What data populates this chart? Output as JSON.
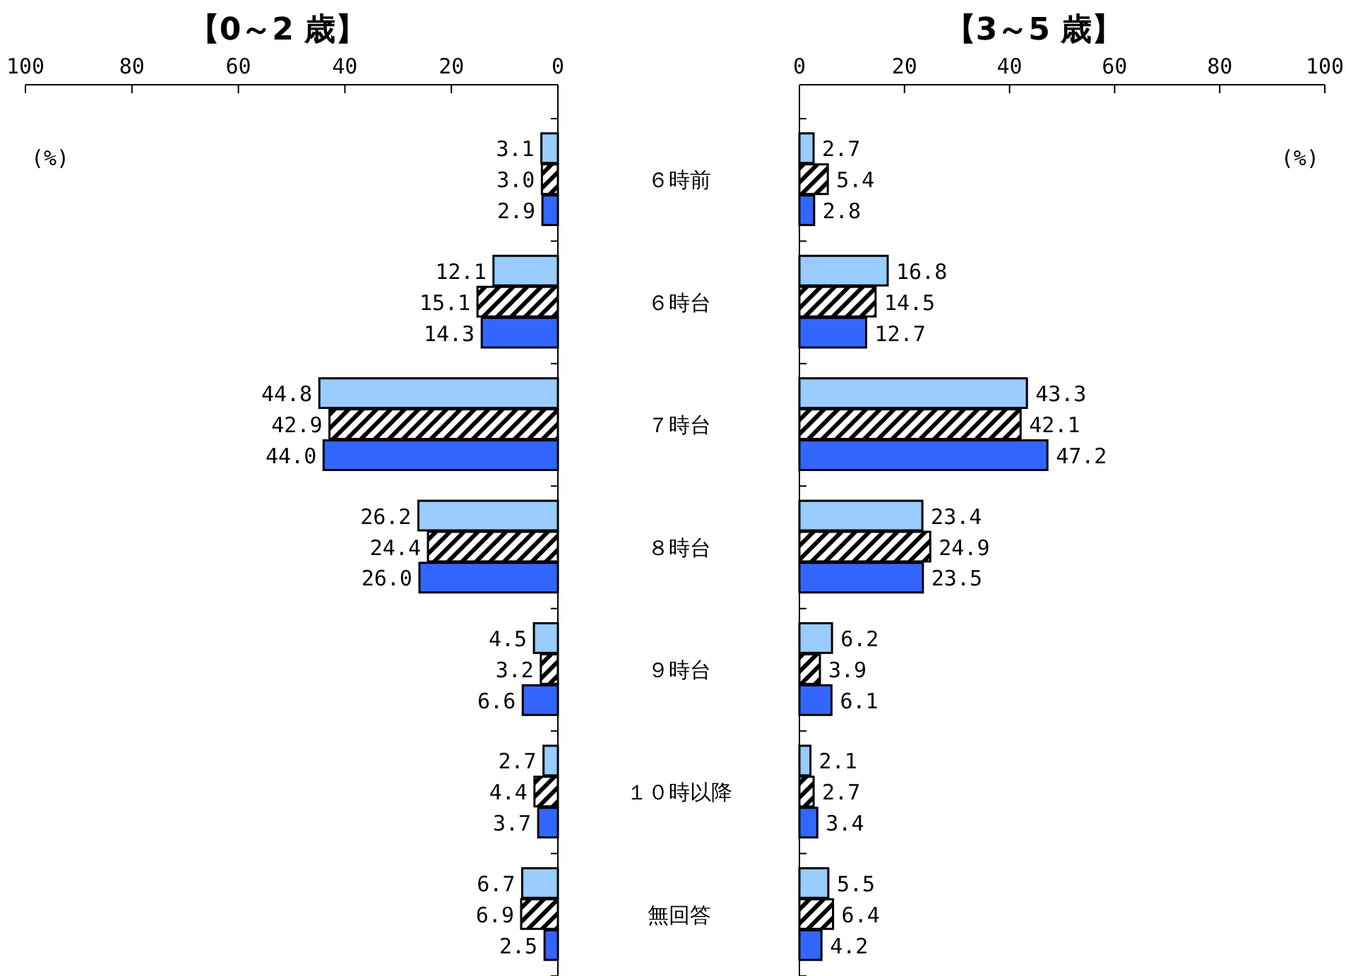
{
  "chart_data": [
    {
      "type": "bar",
      "orientation": "horizontal",
      "title": "【0～2 歳】",
      "xlabel": "(%)",
      "xlim": [
        100,
        0
      ],
      "xticks": [
        0,
        20,
        40,
        60,
        80,
        100
      ],
      "series": [
        {
          "color": "#99ccff",
          "values": [
            3.1,
            12.1,
            44.8,
            26.2,
            4.5,
            2.7,
            6.7
          ],
          "value_labels": [
            "3.1",
            "12.1",
            "44.8",
            "26.2",
            "4.5",
            "2.7",
            "6.7"
          ]
        },
        {
          "color": "#000000",
          "values": [
            3.0,
            15.1,
            42.9,
            24.4,
            3.2,
            4.4,
            6.9
          ],
          "value_labels": [
            "3.0",
            "15.1",
            "42.9",
            "24.4",
            "3.2",
            "4.4",
            "6.9"
          ]
        },
        {
          "color": "#3366ff",
          "values": [
            2.9,
            14.3,
            44.0,
            26.0,
            6.6,
            3.7,
            2.5
          ],
          "value_labels": [
            "2.9",
            "14.3",
            "44.0",
            "26.0",
            "6.6",
            "3.7",
            "2.5"
          ]
        }
      ]
    },
    {
      "type": "bar",
      "orientation": "horizontal",
      "title": "【3～5 歳】",
      "xlabel": "(%)",
      "categories": [
        "６時前",
        "６時台",
        "７時台",
        "８時台",
        "９時台",
        "１０時以降",
        "無回答"
      ],
      "xlim": [
        0,
        100
      ],
      "xticks": [
        0,
        20,
        40,
        60,
        80,
        100
      ],
      "series": [
        {
          "color": "#99ccff",
          "values": [
            2.7,
            16.8,
            43.3,
            23.4,
            6.2,
            2.1,
            5.5
          ],
          "value_labels": [
            "2.7",
            "16.8",
            "43.3",
            "23.4",
            "6.2",
            "2.1",
            "5.5"
          ]
        },
        {
          "color": "#000000",
          "values": [
            5.4,
            14.5,
            42.1,
            24.9,
            3.9,
            2.7,
            6.4
          ],
          "value_labels": [
            "5.4",
            "14.5",
            "42.1",
            "24.9",
            "3.9",
            "2.7",
            "6.4"
          ]
        },
        {
          "color": "#3366ff",
          "values": [
            2.8,
            12.7,
            47.2,
            23.5,
            6.1,
            3.4,
            4.2
          ],
          "value_labels": [
            "2.8",
            "12.7",
            "47.2",
            "23.5",
            "6.1",
            "3.4",
            "4.2"
          ]
        }
      ]
    }
  ]
}
